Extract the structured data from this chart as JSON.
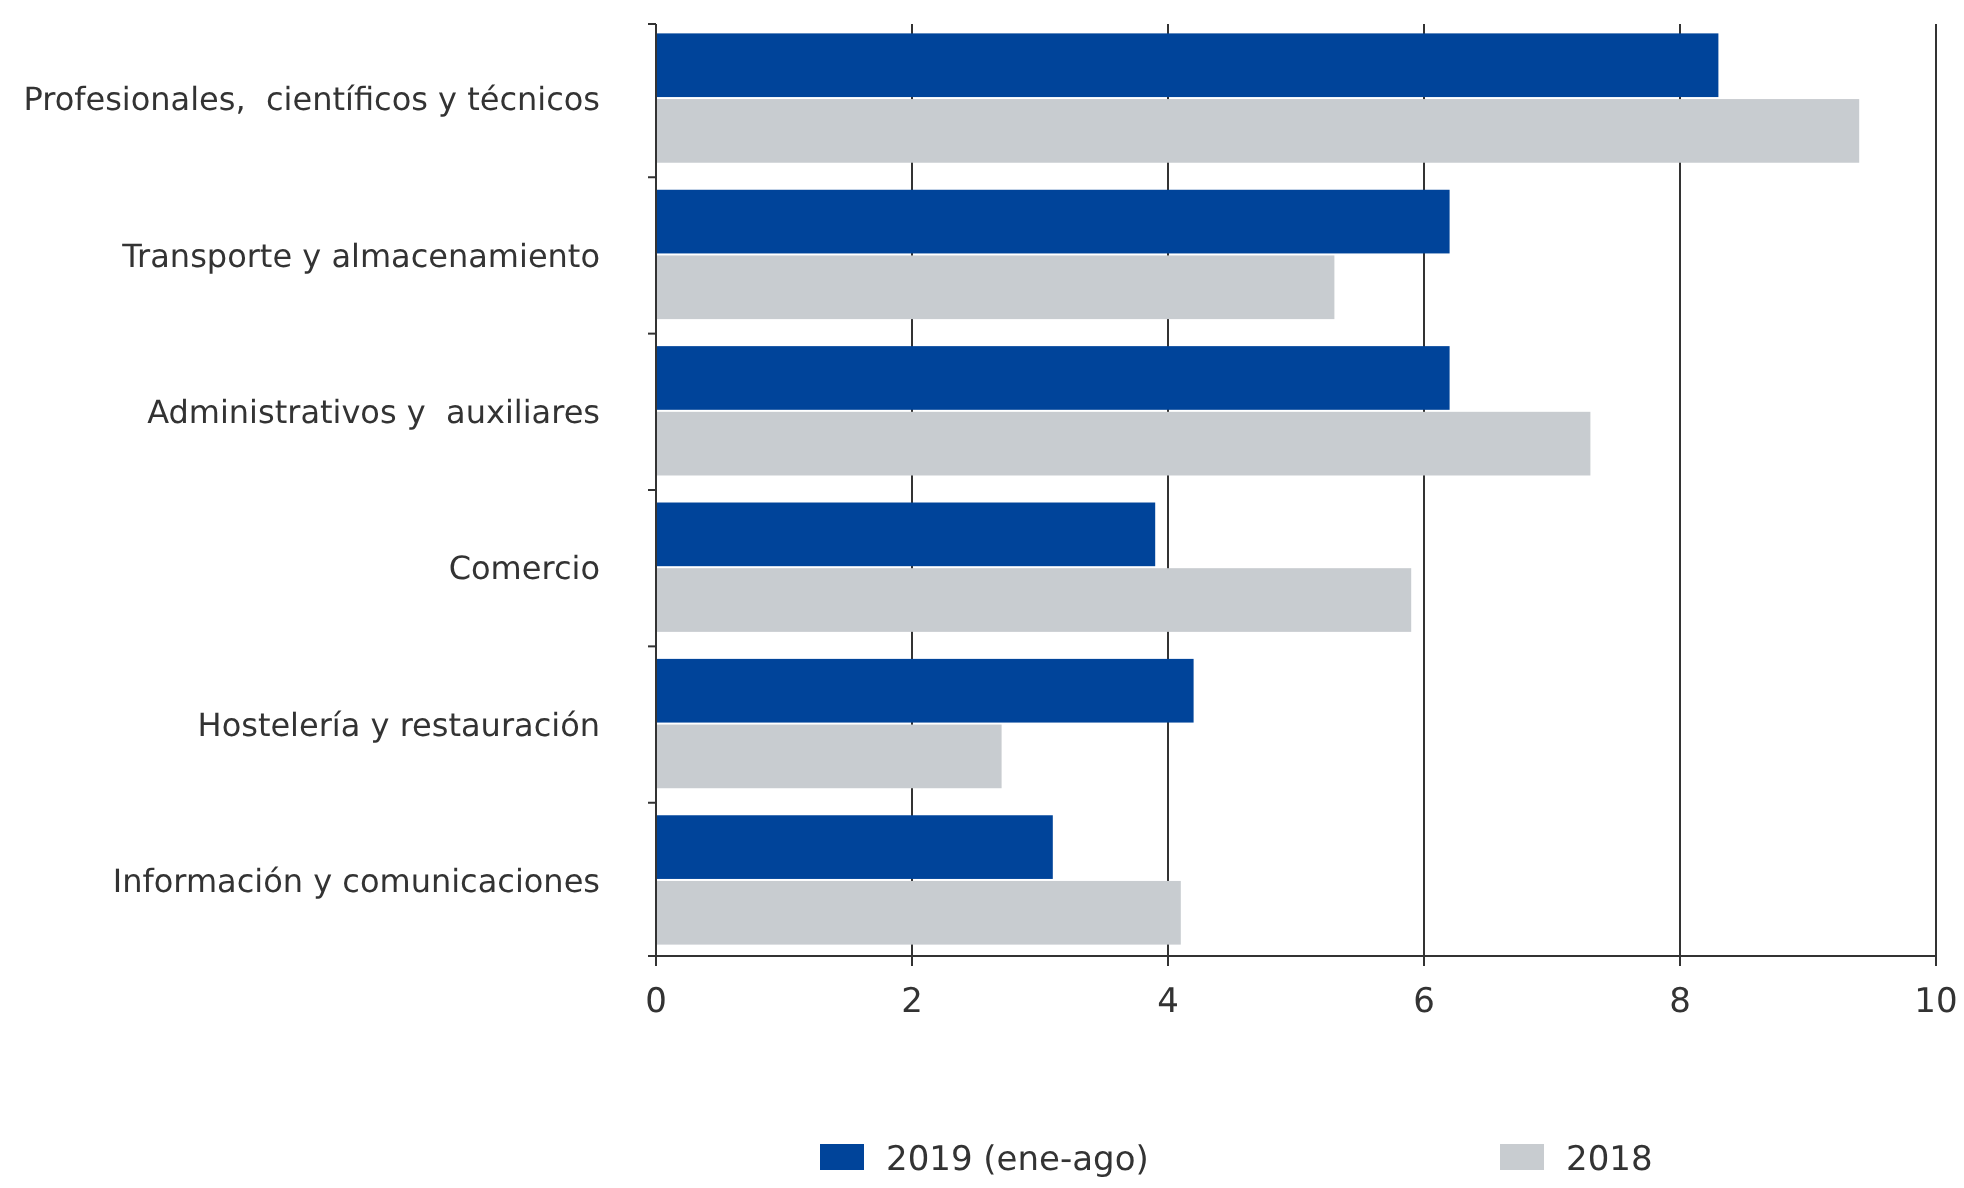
{
  "chart_data": {
    "type": "bar",
    "orientation": "horizontal",
    "categories": [
      "Profesionales,  científicos y técnicos",
      "Transporte y almacenamiento",
      "Administrativos y  auxiliares",
      "Comercio",
      "Hostelería y restauración",
      "Información y comunicaciones"
    ],
    "series": [
      {
        "name": "2019 (ene-ago)",
        "color": "#00449a",
        "values": [
          8.3,
          6.2,
          6.2,
          3.9,
          4.2,
          3.1
        ]
      },
      {
        "name": "2018",
        "color": "#c8ccd0",
        "values": [
          9.4,
          5.3,
          7.3,
          5.9,
          2.7,
          4.1
        ]
      }
    ],
    "xlim": [
      0,
      10
    ],
    "xticks": [
      0,
      2,
      4,
      6,
      8,
      10
    ],
    "grid": "x",
    "legend": "bottom"
  }
}
